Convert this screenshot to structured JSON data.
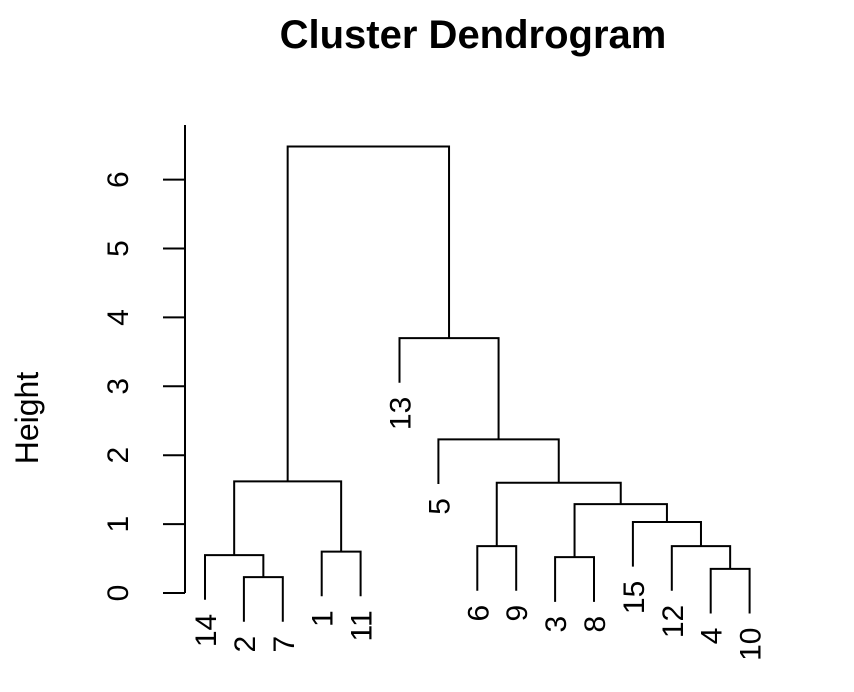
{
  "chart_data": {
    "type": "dendrogram",
    "title": "Cluster Dendrogram",
    "ylabel": "Height",
    "yticks": [
      0,
      1,
      2,
      3,
      4,
      5,
      6
    ],
    "leaf_order": [
      "14",
      "2",
      "7",
      "1",
      "11",
      "13",
      "5",
      "6",
      "9",
      "3",
      "8",
      "15",
      "12",
      "4",
      "10"
    ],
    "merges": [
      {
        "left": "4",
        "right": "10",
        "height": 0.35
      },
      {
        "left": "2",
        "right": "7",
        "height": 0.23
      },
      {
        "left": "14",
        "right": "2+7",
        "height": 0.55
      },
      {
        "left": "1",
        "right": "11",
        "height": 0.6
      },
      {
        "left": "6",
        "right": "9",
        "height": 0.68
      },
      {
        "left": "3",
        "right": "8",
        "height": 0.52
      },
      {
        "left": "12",
        "right": "4+10",
        "height": 0.68
      },
      {
        "left": "15",
        "right": "12+4+10",
        "height": 1.03
      },
      {
        "left": "3+8",
        "right": "15+12+4+10",
        "height": 1.29
      },
      {
        "left": "6+9",
        "right": "3+8+15+12+4+10",
        "height": 1.6
      },
      {
        "left": "5",
        "right": "6+9+3+8+15+12+4+10",
        "height": 2.23
      },
      {
        "left": "13",
        "right": "5+6+9+3+8+15+12+4+10",
        "height": 3.7
      },
      {
        "left": "14+2+7",
        "right": "1+11",
        "height": 1.62
      },
      {
        "left": "14+2+7+1+11",
        "right": "13+5+6+9+3+8+15+12+4+10",
        "height": 6.48
      }
    ]
  }
}
